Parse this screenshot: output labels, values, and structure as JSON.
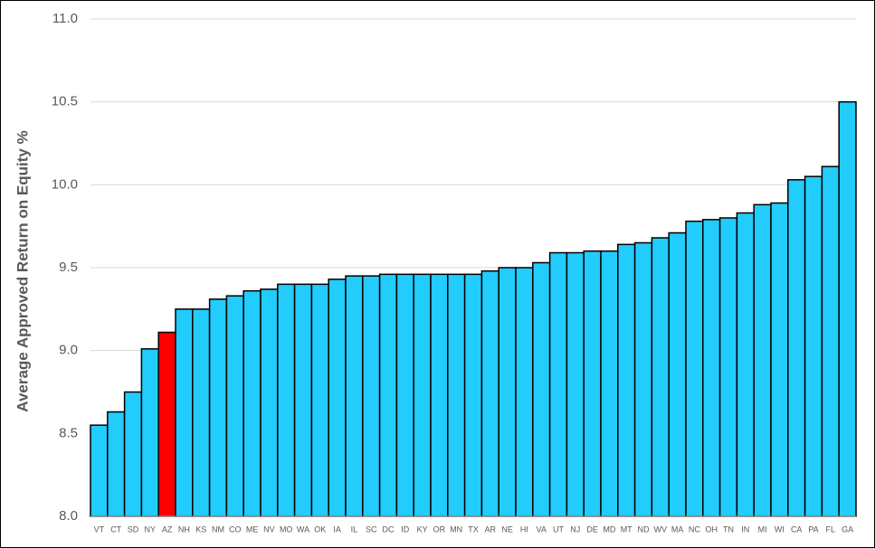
{
  "chart_data": {
    "type": "bar",
    "y_label": "Average Approved Return on Equity %",
    "categories": [
      "VT",
      "CT",
      "SD",
      "NY",
      "AZ",
      "NH",
      "KS",
      "NM",
      "CO",
      "ME",
      "NV",
      "MO",
      "WA",
      "OK",
      "IA",
      "IL",
      "SC",
      "DC",
      "ID",
      "KY",
      "OR",
      "MN",
      "TX",
      "AR",
      "NE",
      "HI",
      "VA",
      "UT",
      "NJ",
      "DE",
      "MD",
      "MT",
      "ND",
      "WV",
      "MA",
      "NC",
      "OH",
      "TN",
      "IN",
      "MI",
      "WI",
      "CA",
      "PA",
      "FL",
      "GA"
    ],
    "values": [
      8.55,
      8.63,
      8.75,
      9.01,
      9.11,
      9.25,
      9.25,
      9.31,
      9.33,
      9.36,
      9.37,
      9.4,
      9.4,
      9.4,
      9.43,
      9.45,
      9.45,
      9.46,
      9.46,
      9.46,
      9.46,
      9.46,
      9.46,
      9.48,
      9.5,
      9.5,
      9.53,
      9.59,
      9.59,
      9.6,
      9.6,
      9.64,
      9.65,
      9.68,
      9.71,
      9.78,
      9.79,
      9.8,
      9.83,
      9.88,
      9.89,
      10.03,
      10.05,
      10.11,
      10.5
    ],
    "colors": [
      "#22ccfc",
      "#22ccfc",
      "#22ccfc",
      "#22ccfc",
      "#ff0000",
      "#22ccfc",
      "#22ccfc",
      "#22ccfc",
      "#22ccfc",
      "#22ccfc",
      "#22ccfc",
      "#22ccfc",
      "#22ccfc",
      "#22ccfc",
      "#22ccfc",
      "#22ccfc",
      "#22ccfc",
      "#22ccfc",
      "#22ccfc",
      "#22ccfc",
      "#22ccfc",
      "#22ccfc",
      "#22ccfc",
      "#22ccfc",
      "#22ccfc",
      "#22ccfc",
      "#22ccfc",
      "#22ccfc",
      "#22ccfc",
      "#22ccfc",
      "#22ccfc",
      "#22ccfc",
      "#22ccfc",
      "#22ccfc",
      "#22ccfc",
      "#22ccfc",
      "#22ccfc",
      "#22ccfc",
      "#22ccfc",
      "#22ccfc",
      "#22ccfc",
      "#22ccfc",
      "#22ccfc",
      "#22ccfc",
      "#22ccfc"
    ],
    "ylim": [
      8.0,
      11.0
    ],
    "yticks": [
      {
        "value": 8,
        "label": "8.0"
      },
      8.5,
      {
        "value": 9,
        "label": "9.0"
      },
      9.5,
      {
        "value": 10,
        "label": "10.0"
      },
      10.5,
      {
        "value": 11,
        "label": "11.0"
      }
    ],
    "grid": true
  }
}
